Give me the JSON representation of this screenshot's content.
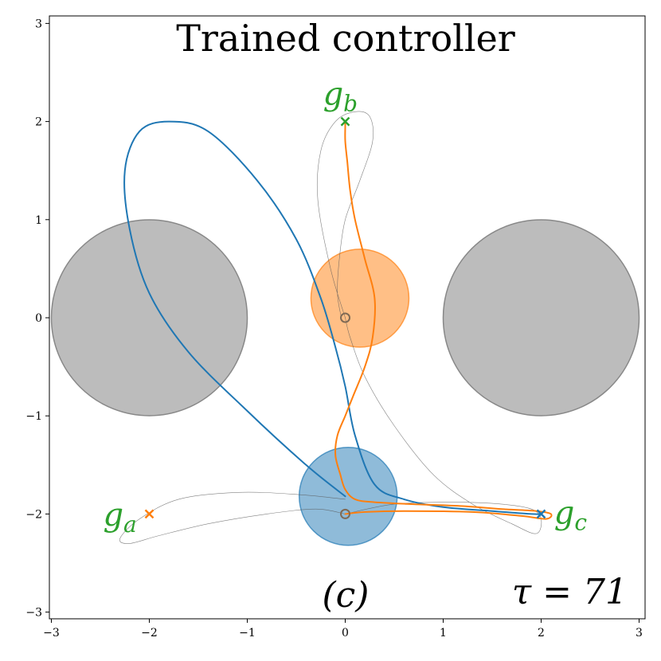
{
  "chart_data": {
    "type": "line",
    "title": "Trained controller",
    "panel_label": "(c)",
    "tau_label": "τ = 71",
    "xlim": [
      -3,
      3
    ],
    "ylim": [
      -3,
      3
    ],
    "xticks": [
      -3,
      -2,
      -1,
      0,
      1,
      2,
      3
    ],
    "yticks": [
      -3,
      -2,
      -1,
      0,
      1,
      2,
      3
    ],
    "xtick_labels": [
      "−3",
      "−2",
      "−1",
      "0",
      "1",
      "2",
      "3"
    ],
    "ytick_labels": [
      "−3",
      "−2",
      "−1",
      "0",
      "1",
      "2",
      "3"
    ],
    "grid": false,
    "colors": {
      "blue": "#1f77b4",
      "orange": "#ff7f0e",
      "green": "#2ca02c",
      "gray": "#7f7f7f",
      "obstacle": "#a0a0a0"
    },
    "obstacles": [
      {
        "cx": -2,
        "cy": 0,
        "r": 1
      },
      {
        "cx": 2,
        "cy": 0,
        "r": 1
      }
    ],
    "agents": [
      {
        "color": "blue",
        "cx": 0.03,
        "cy": -1.82,
        "r": 0.5
      },
      {
        "color": "orange",
        "cx": 0.15,
        "cy": 0.2,
        "r": 0.5
      }
    ],
    "start_markers": [
      {
        "x": 0,
        "y": 0
      },
      {
        "x": 0,
        "y": -2
      }
    ],
    "goals": [
      {
        "name": "g_a",
        "label": "g",
        "sub": "a",
        "x": -2,
        "y": -2,
        "label_x": -2.3,
        "label_y": -2.12
      },
      {
        "name": "g_b",
        "label": "g",
        "sub": "b",
        "x": 0,
        "y": 2,
        "label_x": -0.05,
        "label_y": 2.17
      },
      {
        "name": "g_c",
        "label": "g",
        "sub": "c",
        "x": 2,
        "y": -2,
        "label_x": 2.3,
        "label_y": -2.1
      }
    ],
    "goal_markers": [
      {
        "x": -2,
        "y": -2,
        "color": "orange"
      },
      {
        "x": 2,
        "y": -2,
        "color": "blue"
      },
      {
        "x": 0,
        "y": 2,
        "color": "green"
      }
    ],
    "series": [
      {
        "color": "blue",
        "x": [
          2.0,
          1.9,
          1.5,
          1.0,
          0.6,
          0.3,
          0.1,
          0.0,
          -0.1,
          -0.25,
          -0.5,
          -0.9,
          -1.4,
          -1.8,
          -2.1,
          -2.25,
          -2.2,
          -2.0,
          -1.6,
          -1.0,
          -0.4,
          0.0
        ],
        "y": [
          -2.0,
          -2.0,
          -1.97,
          -1.93,
          -1.85,
          -1.7,
          -1.2,
          -0.7,
          -0.3,
          0.2,
          0.8,
          1.4,
          1.9,
          2.0,
          1.9,
          1.5,
          0.9,
          0.25,
          -0.35,
          -0.95,
          -1.5,
          -1.82
        ]
      },
      {
        "color": "orange",
        "x": [
          0.0,
          0.0,
          0.0,
          0.02,
          0.05,
          0.1,
          0.2,
          0.3,
          0.28,
          0.2,
          0.08,
          0.0,
          -0.08,
          -0.1,
          -0.05,
          0.0,
          0.1,
          0.3,
          0.7,
          1.2,
          1.6,
          1.95,
          2.1,
          2.05,
          1.8,
          1.3,
          0.6,
          0.2,
          0.0
        ],
        "y": [
          2.0,
          1.95,
          1.8,
          1.6,
          1.3,
          1.0,
          0.6,
          0.2,
          -0.2,
          -0.5,
          -0.8,
          -1.0,
          -1.2,
          -1.4,
          -1.6,
          -1.75,
          -1.85,
          -1.88,
          -1.9,
          -1.92,
          -1.95,
          -1.97,
          -2.0,
          -2.05,
          -2.02,
          -1.98,
          -1.97,
          -1.98,
          -2.0
        ]
      },
      {
        "color": "gray",
        "x": [
          -0.04,
          -0.08,
          -0.06,
          0.0,
          0.15,
          0.28,
          0.25,
          0.1,
          -0.1,
          -0.25,
          -0.28,
          -0.15,
          0.0
        ],
        "y": [
          0.0,
          0.25,
          0.6,
          1.0,
          1.4,
          1.8,
          2.05,
          2.1,
          2.0,
          1.7,
          1.2,
          0.5,
          0.0
        ]
      },
      {
        "color": "gray",
        "x": [
          0.0,
          0.05,
          0.2,
          0.5,
          0.9,
          1.3,
          1.7,
          1.95,
          2.0,
          1.9,
          1.6,
          1.1,
          0.5,
          0.0
        ],
        "y": [
          0.0,
          -0.2,
          -0.6,
          -1.1,
          -1.6,
          -1.9,
          -2.1,
          -2.2,
          -2.05,
          -1.95,
          -1.9,
          -1.88,
          -1.9,
          -2.0
        ]
      },
      {
        "color": "gray",
        "x": [
          0.0,
          -0.5,
          -1.1,
          -1.7,
          -2.1,
          -2.3,
          -2.2,
          -1.9,
          -1.4,
          -0.8,
          -0.3,
          0.0
        ],
        "y": [
          -1.85,
          -1.8,
          -1.78,
          -1.85,
          -2.05,
          -2.25,
          -2.3,
          -2.22,
          -2.1,
          -2.0,
          -1.95,
          -2.0
        ]
      }
    ]
  }
}
